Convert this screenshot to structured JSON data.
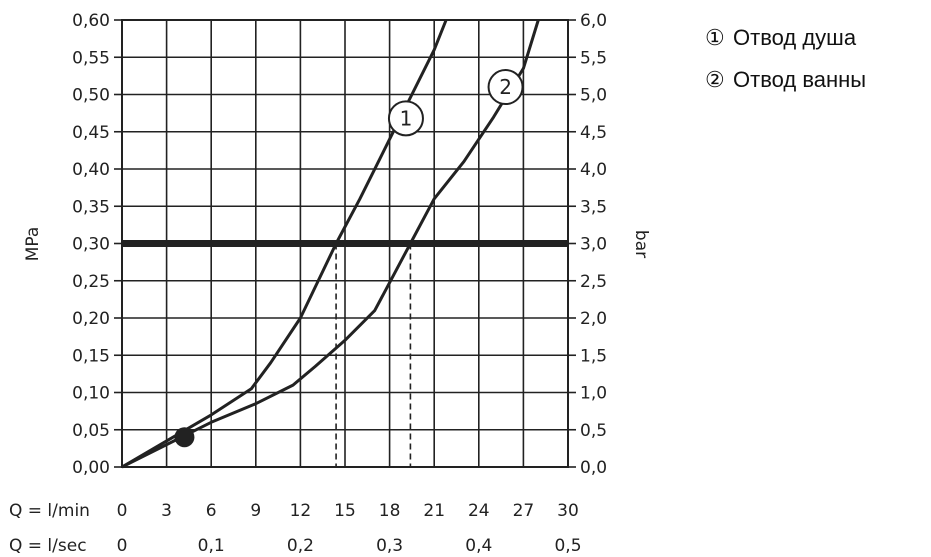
{
  "chart_data": {
    "type": "line",
    "ylabel_left": "MPa",
    "ylabel_right": "bar",
    "xlabel_lmin": "Q = l/min",
    "xlabel_lsec": "Q = l/sec",
    "xlim": [
      0,
      30
    ],
    "ylim": [
      0,
      0.6
    ],
    "y_left_ticks": [
      "0,00",
      "0,05",
      "0,10",
      "0,15",
      "0,20",
      "0,25",
      "0,30",
      "0,35",
      "0,40",
      "0,45",
      "0,50",
      "0,55",
      "0,60"
    ],
    "y_right_ticks": [
      "0,0",
      "0,5",
      "1,0",
      "1,5",
      "2,0",
      "2,5",
      "3,0",
      "3,5",
      "4,0",
      "4,5",
      "5,0",
      "5,5",
      "6,0"
    ],
    "x_lmin_ticks": [
      "0",
      "3",
      "6",
      "9",
      "12",
      "15",
      "18",
      "21",
      "24",
      "27",
      "30"
    ],
    "x_lsec_ticks": [
      {
        "label": "0",
        "x": 0
      },
      {
        "label": "0,1",
        "x": 6
      },
      {
        "label": "0,2",
        "x": 12
      },
      {
        "label": "0,3",
        "x": 18
      },
      {
        "label": "0,4",
        "x": 24
      },
      {
        "label": "0,5",
        "x": 30
      }
    ],
    "grid": true,
    "reference_line": {
      "y": 0.3
    },
    "drop_lines": [
      14.4,
      19.4
    ],
    "marker_point": {
      "x": 4.2,
      "y": 0.04
    },
    "series": [
      {
        "label": "1",
        "points": [
          [
            0,
            0
          ],
          [
            3,
            0.035
          ],
          [
            6,
            0.07
          ],
          [
            8.7,
            0.105
          ],
          [
            10,
            0.14
          ],
          [
            12,
            0.2
          ],
          [
            14.4,
            0.3
          ],
          [
            16,
            0.36
          ],
          [
            18,
            0.44
          ],
          [
            19.5,
            0.5
          ],
          [
            21,
            0.56
          ],
          [
            21.8,
            0.6
          ]
        ]
      },
      {
        "label": "2",
        "points": [
          [
            0,
            0
          ],
          [
            3,
            0.03
          ],
          [
            6,
            0.06
          ],
          [
            9,
            0.085
          ],
          [
            11.5,
            0.11
          ],
          [
            13,
            0.135
          ],
          [
            15,
            0.17
          ],
          [
            17,
            0.21
          ],
          [
            19.4,
            0.3
          ],
          [
            21,
            0.36
          ],
          [
            23,
            0.41
          ],
          [
            25,
            0.47
          ],
          [
            27,
            0.535
          ],
          [
            28,
            0.6
          ]
        ]
      }
    ],
    "legend": [
      {
        "marker": "①",
        "text": "Отвод душа"
      },
      {
        "marker": "②",
        "text": "Отвод ванны"
      }
    ]
  }
}
